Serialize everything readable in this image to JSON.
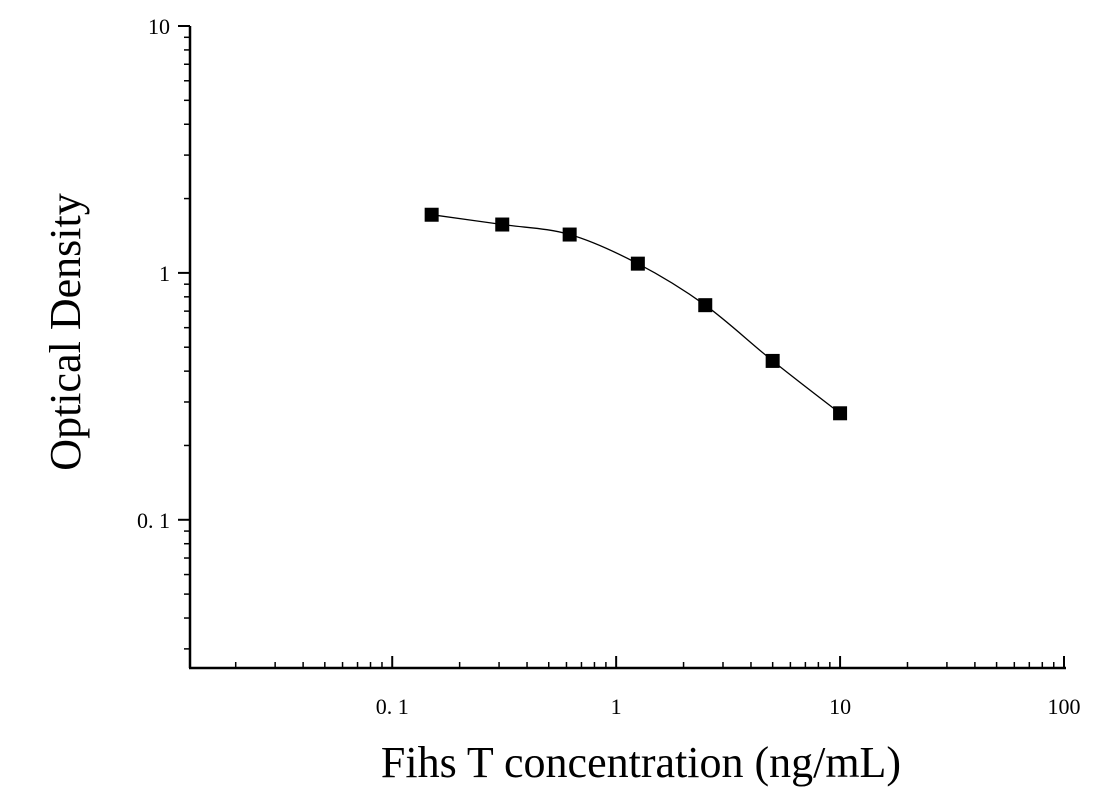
{
  "chart_data": {
    "type": "scatter",
    "xlabel": "Fihs T concentration (ng/mL)",
    "ylabel": "Optical Density",
    "xscale": "log",
    "yscale": "log",
    "xlim": [
      0.0125,
      100
    ],
    "ylim": [
      0.0251,
      10
    ],
    "xticks": [
      {
        "value": 0.1,
        "label": "0. 1"
      },
      {
        "value": 1,
        "label": "1"
      },
      {
        "value": 10,
        "label": "10"
      },
      {
        "value": 100,
        "label": "100"
      }
    ],
    "yticks": [
      {
        "value": 0.1,
        "label": "0. 1"
      },
      {
        "value": 1,
        "label": "1"
      },
      {
        "value": 10,
        "label": "10"
      }
    ],
    "grid": false,
    "series": [
      {
        "marker": "square",
        "color": "#000000",
        "fit_line": true,
        "x": [
          0.15,
          0.31,
          0.62,
          1.25,
          2.5,
          5,
          10
        ],
        "y": [
          1.72,
          1.57,
          1.43,
          1.09,
          0.74,
          0.44,
          0.27
        ]
      }
    ]
  }
}
